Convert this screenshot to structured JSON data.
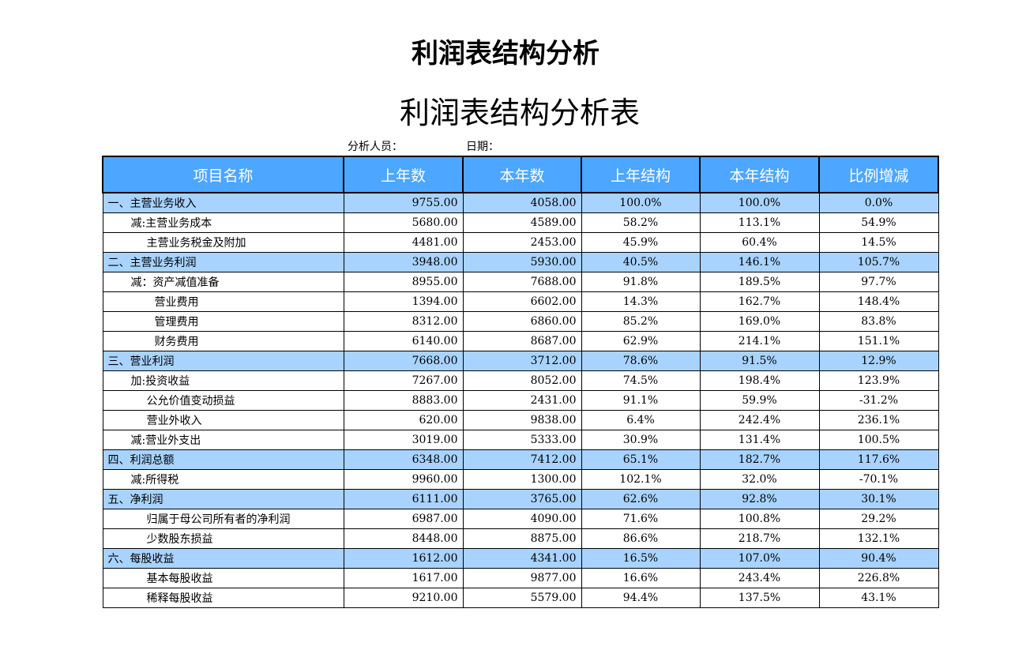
{
  "main_title": "利润表结构分析",
  "sub_title": "利润表结构分析表",
  "meta": {
    "analyst_label": "分析人员：",
    "date_label": "日期："
  },
  "headers": [
    "项目名称",
    "上年数",
    "本年数",
    "上年结构",
    "本年结构",
    "比例增减"
  ],
  "rows": [
    {
      "name": "一、主营业务收入",
      "indent": 0,
      "section": true,
      "prev": "9755.00",
      "curr": "4058.00",
      "prev_s": "100.0%",
      "curr_s": "100.0%",
      "change": "0.0%"
    },
    {
      "name": "减:主营业务成本",
      "indent": 1,
      "section": false,
      "prev": "5680.00",
      "curr": "4589.00",
      "prev_s": "58.2%",
      "curr_s": "113.1%",
      "change": "54.9%"
    },
    {
      "name": "主营业务税金及附加",
      "indent": 2,
      "section": false,
      "prev": "4481.00",
      "curr": "2453.00",
      "prev_s": "45.9%",
      "curr_s": "60.4%",
      "change": "14.5%"
    },
    {
      "name": "二、主营业务利润",
      "indent": 0,
      "section": true,
      "prev": "3948.00",
      "curr": "5930.00",
      "prev_s": "40.5%",
      "curr_s": "146.1%",
      "change": "105.7%"
    },
    {
      "name": "减：资产减值准备",
      "indent": 1,
      "section": false,
      "prev": "8955.00",
      "curr": "7688.00",
      "prev_s": "91.8%",
      "curr_s": "189.5%",
      "change": "97.7%"
    },
    {
      "name": "营业费用",
      "indent": 3,
      "section": false,
      "prev": "1394.00",
      "curr": "6602.00",
      "prev_s": "14.3%",
      "curr_s": "162.7%",
      "change": "148.4%"
    },
    {
      "name": "管理费用",
      "indent": 3,
      "section": false,
      "prev": "8312.00",
      "curr": "6860.00",
      "prev_s": "85.2%",
      "curr_s": "169.0%",
      "change": "83.8%"
    },
    {
      "name": "财务费用",
      "indent": 3,
      "section": false,
      "prev": "6140.00",
      "curr": "8687.00",
      "prev_s": "62.9%",
      "curr_s": "214.1%",
      "change": "151.1%"
    },
    {
      "name": "三、营业利润",
      "indent": 0,
      "section": true,
      "prev": "7668.00",
      "curr": "3712.00",
      "prev_s": "78.6%",
      "curr_s": "91.5%",
      "change": "12.9%"
    },
    {
      "name": "加:投资收益",
      "indent": 1,
      "section": false,
      "prev": "7267.00",
      "curr": "8052.00",
      "prev_s": "74.5%",
      "curr_s": "198.4%",
      "change": "123.9%"
    },
    {
      "name": "公允价值变动损益",
      "indent": 2,
      "section": false,
      "prev": "8883.00",
      "curr": "2431.00",
      "prev_s": "91.1%",
      "curr_s": "59.9%",
      "change": "-31.2%"
    },
    {
      "name": "营业外收入",
      "indent": 2,
      "section": false,
      "prev": "620.00",
      "curr": "9838.00",
      "prev_s": "6.4%",
      "curr_s": "242.4%",
      "change": "236.1%"
    },
    {
      "name": "减:营业外支出",
      "indent": 1,
      "section": false,
      "prev": "3019.00",
      "curr": "5333.00",
      "prev_s": "30.9%",
      "curr_s": "131.4%",
      "change": "100.5%"
    },
    {
      "name": "四、利润总额",
      "indent": 0,
      "section": true,
      "prev": "6348.00",
      "curr": "7412.00",
      "prev_s": "65.1%",
      "curr_s": "182.7%",
      "change": "117.6%"
    },
    {
      "name": "减:所得税",
      "indent": 1,
      "section": false,
      "prev": "9960.00",
      "curr": "1300.00",
      "prev_s": "102.1%",
      "curr_s": "32.0%",
      "change": "-70.1%"
    },
    {
      "name": "五、净利润",
      "indent": 0,
      "section": true,
      "prev": "6111.00",
      "curr": "3765.00",
      "prev_s": "62.6%",
      "curr_s": "92.8%",
      "change": "30.1%"
    },
    {
      "name": "归属于母公司所有者的净利润",
      "indent": 2,
      "section": false,
      "prev": "6987.00",
      "curr": "4090.00",
      "prev_s": "71.6%",
      "curr_s": "100.8%",
      "change": "29.2%"
    },
    {
      "name": "少数股东损益",
      "indent": 2,
      "section": false,
      "prev": "8448.00",
      "curr": "8875.00",
      "prev_s": "86.6%",
      "curr_s": "218.7%",
      "change": "132.1%"
    },
    {
      "name": "六、每股收益",
      "indent": 0,
      "section": true,
      "prev": "1612.00",
      "curr": "4341.00",
      "prev_s": "16.5%",
      "curr_s": "107.0%",
      "change": "90.4%"
    },
    {
      "name": "基本每股收益",
      "indent": 2,
      "section": false,
      "prev": "1617.00",
      "curr": "9877.00",
      "prev_s": "16.6%",
      "curr_s": "243.4%",
      "change": "226.8%"
    },
    {
      "name": "稀释每股收益",
      "indent": 2,
      "section": false,
      "prev": "9210.00",
      "curr": "5579.00",
      "prev_s": "94.4%",
      "curr_s": "137.5%",
      "change": "43.1%"
    }
  ]
}
